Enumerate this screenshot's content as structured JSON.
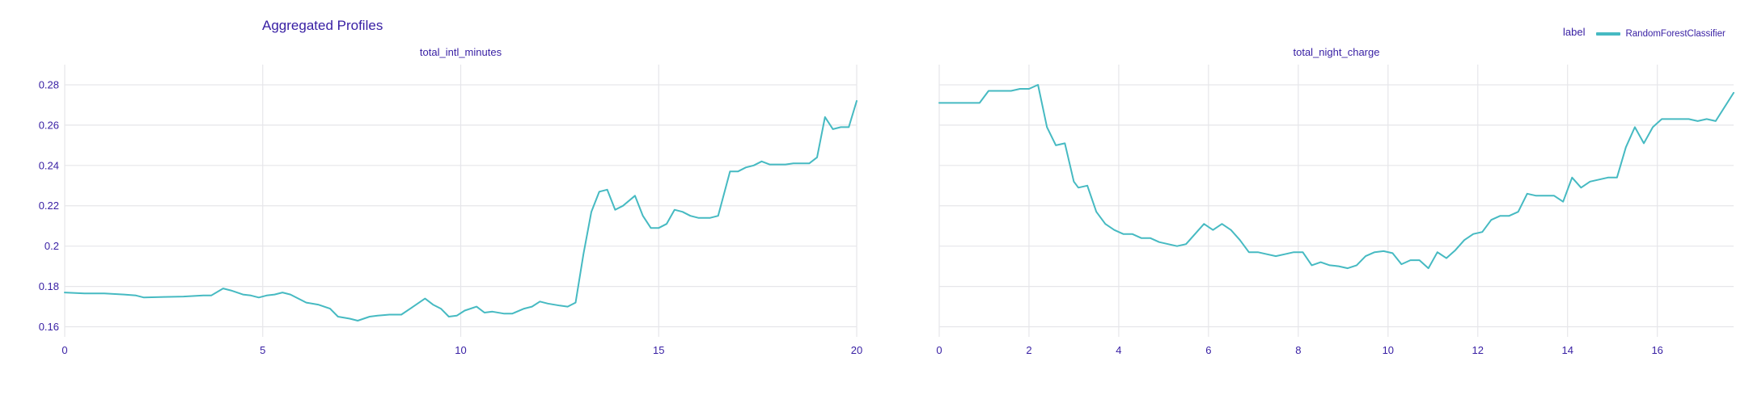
{
  "title": "Aggregated Profiles",
  "legend": {
    "title": "label",
    "items": [
      {
        "label": "RandomForestClassifier",
        "color": "#46bac2"
      }
    ]
  },
  "colors": {
    "text": "#371ea3",
    "grid": "#e6e6ea",
    "line": "#46bac2"
  },
  "chart_data": [
    {
      "type": "line",
      "title": "total_intl_minutes",
      "xlabel": "",
      "ylabel": "",
      "xlim": [
        0,
        20
      ],
      "ylim": [
        0.155,
        0.29
      ],
      "xticks": [
        0,
        5,
        10,
        15,
        20
      ],
      "yticks": [
        0.16,
        0.18,
        0.2,
        0.22,
        0.24,
        0.26,
        0.28
      ],
      "ytick_labels": [
        "0.16",
        "0.18",
        "0.2",
        "0.22",
        "0.24",
        "0.26",
        "0.28"
      ],
      "grid": true,
      "series": [
        {
          "name": "RandomForestClassifier",
          "color": "#46bac2",
          "x": [
            0,
            0.5,
            1,
            1.5,
            1.8,
            2,
            2.5,
            3,
            3.5,
            3.7,
            4,
            4.2,
            4.5,
            4.7,
            4.9,
            5.1,
            5.3,
            5.5,
            5.7,
            5.9,
            6.1,
            6.4,
            6.7,
            6.9,
            7.2,
            7.4,
            7.7,
            7.9,
            8.2,
            8.5,
            8.8,
            9.1,
            9.3,
            9.5,
            9.7,
            9.9,
            10.1,
            10.4,
            10.6,
            10.8,
            11.1,
            11.3,
            11.6,
            11.8,
            12,
            12.2,
            12.5,
            12.7,
            12.9,
            13.1,
            13.3,
            13.5,
            13.7,
            13.9,
            14.1,
            14.4,
            14.6,
            14.8,
            15,
            15.2,
            15.4,
            15.6,
            15.8,
            16,
            16.3,
            16.5,
            16.8,
            17,
            17.2,
            17.4,
            17.6,
            17.8,
            18,
            18.2,
            18.4,
            18.6,
            18.8,
            19,
            19.2,
            19.4,
            19.6,
            19.8,
            20
          ],
          "y": [
            0.177,
            0.1765,
            0.1765,
            0.176,
            0.1755,
            0.1745,
            0.1748,
            0.175,
            0.1755,
            0.1755,
            0.179,
            0.178,
            0.176,
            0.1755,
            0.1745,
            0.1755,
            0.176,
            0.177,
            0.176,
            0.174,
            0.172,
            0.171,
            0.169,
            0.165,
            0.164,
            0.163,
            0.165,
            0.1655,
            0.166,
            0.166,
            0.17,
            0.174,
            0.171,
            0.169,
            0.165,
            0.1655,
            0.168,
            0.17,
            0.167,
            0.1675,
            0.1665,
            0.1665,
            0.169,
            0.17,
            0.1725,
            0.1715,
            0.1705,
            0.17,
            0.172,
            0.196,
            0.217,
            0.227,
            0.228,
            0.218,
            0.22,
            0.225,
            0.215,
            0.209,
            0.209,
            0.211,
            0.218,
            0.217,
            0.215,
            0.214,
            0.214,
            0.215,
            0.237,
            0.237,
            0.239,
            0.24,
            0.242,
            0.2405,
            0.2405,
            0.2405,
            0.241,
            0.241,
            0.241,
            0.244,
            0.264,
            0.258,
            0.259,
            0.259,
            0.272
          ]
        }
      ]
    },
    {
      "type": "line",
      "title": "total_night_charge",
      "xlabel": "",
      "ylabel": "",
      "xlim": [
        0,
        17.7
      ],
      "ylim": [
        0.155,
        0.29
      ],
      "xticks": [
        0,
        2,
        4,
        6,
        8,
        10,
        12,
        14,
        16
      ],
      "yticks": [
        0.16,
        0.18,
        0.2,
        0.22,
        0.24,
        0.26,
        0.28
      ],
      "grid": true,
      "series": [
        {
          "name": "RandomForestClassifier",
          "color": "#46bac2",
          "x": [
            0,
            0.5,
            0.9,
            1.1,
            1.4,
            1.6,
            1.8,
            2,
            2.2,
            2.4,
            2.6,
            2.8,
            3,
            3.1,
            3.3,
            3.5,
            3.7,
            3.9,
            4.1,
            4.3,
            4.5,
            4.7,
            4.9,
            5.1,
            5.3,
            5.5,
            5.7,
            5.9,
            6.1,
            6.3,
            6.5,
            6.7,
            6.9,
            7.1,
            7.3,
            7.5,
            7.7,
            7.9,
            8.1,
            8.3,
            8.5,
            8.7,
            8.9,
            9.1,
            9.3,
            9.5,
            9.7,
            9.9,
            10.1,
            10.3,
            10.5,
            10.7,
            10.9,
            11.1,
            11.3,
            11.5,
            11.7,
            11.9,
            12.1,
            12.3,
            12.5,
            12.7,
            12.9,
            13.1,
            13.3,
            13.5,
            13.7,
            13.9,
            14.1,
            14.3,
            14.5,
            14.7,
            14.9,
            15.1,
            15.3,
            15.5,
            15.7,
            15.9,
            16.1,
            16.3,
            16.5,
            16.7,
            16.9,
            17.1,
            17.3,
            17.7
          ],
          "y": [
            0.271,
            0.271,
            0.271,
            0.277,
            0.277,
            0.277,
            0.278,
            0.278,
            0.28,
            0.259,
            0.25,
            0.251,
            0.232,
            0.229,
            0.23,
            0.217,
            0.211,
            0.208,
            0.206,
            0.206,
            0.204,
            0.204,
            0.202,
            0.201,
            0.2,
            0.201,
            0.206,
            0.211,
            0.208,
            0.211,
            0.208,
            0.203,
            0.197,
            0.197,
            0.196,
            0.195,
            0.196,
            0.197,
            0.197,
            0.1905,
            0.192,
            0.1905,
            0.19,
            0.189,
            0.1905,
            0.195,
            0.197,
            0.1975,
            0.1965,
            0.191,
            0.193,
            0.193,
            0.189,
            0.197,
            0.194,
            0.198,
            0.203,
            0.206,
            0.207,
            0.213,
            0.215,
            0.215,
            0.217,
            0.226,
            0.225,
            0.225,
            0.225,
            0.222,
            0.234,
            0.229,
            0.232,
            0.233,
            0.234,
            0.234,
            0.249,
            0.259,
            0.251,
            0.259,
            0.263,
            0.263,
            0.263,
            0.263,
            0.262,
            0.263,
            0.262,
            0.276
          ]
        }
      ]
    }
  ]
}
